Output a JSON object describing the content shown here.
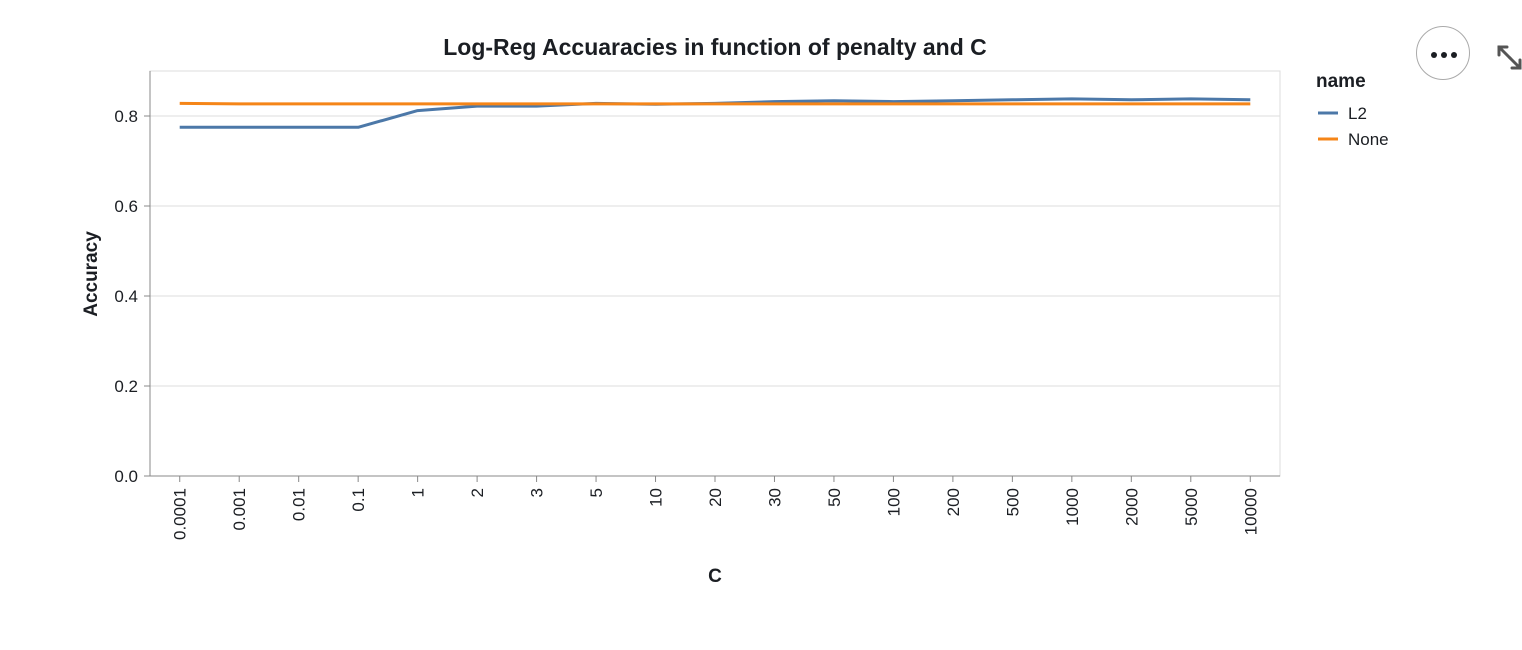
{
  "chart_data": {
    "type": "line",
    "title": "Log-Reg Accuaracies in function of penalty and C",
    "xlabel": "C",
    "ylabel": "Accuracy",
    "categories": [
      "0.0001",
      "0.001",
      "0.01",
      "0.1",
      "1",
      "2",
      "3",
      "5",
      "10",
      "20",
      "30",
      "50",
      "100",
      "200",
      "500",
      "1000",
      "2000",
      "5000",
      "10000"
    ],
    "ylim": [
      0,
      0.9
    ],
    "yticks": [
      "0.0",
      "0.2",
      "0.4",
      "0.6",
      "0.8"
    ],
    "grid": true,
    "legend": {
      "title": "name",
      "position": "right"
    },
    "series": [
      {
        "name": "L2",
        "color": "#4c78a8",
        "values": [
          0.775,
          0.775,
          0.775,
          0.775,
          0.812,
          0.822,
          0.822,
          0.828,
          0.826,
          0.828,
          0.832,
          0.834,
          0.832,
          0.834,
          0.836,
          0.838,
          0.836,
          0.838,
          0.836
        ]
      },
      {
        "name": "None",
        "color": "#f58518",
        "values": [
          0.828,
          0.827,
          0.827,
          0.827,
          0.827,
          0.827,
          0.827,
          0.827,
          0.827,
          0.827,
          0.827,
          0.827,
          0.827,
          0.827,
          0.827,
          0.827,
          0.827,
          0.827,
          0.827
        ]
      }
    ]
  },
  "actions": {
    "menu_icon": "ellipsis-icon",
    "expand_icon": "expand-icon"
  }
}
